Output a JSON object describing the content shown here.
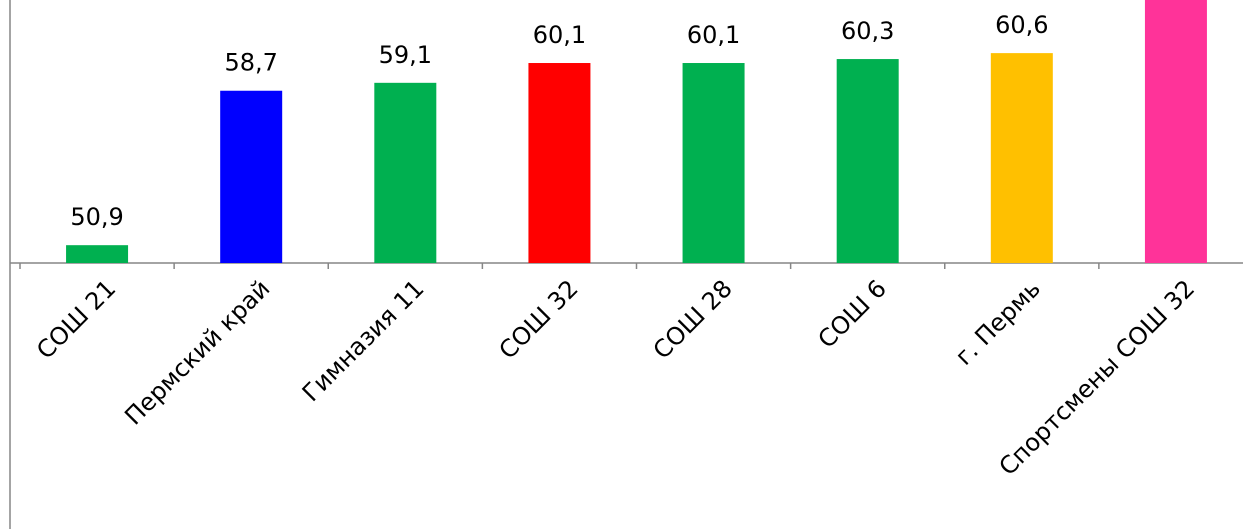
{
  "chart_data": {
    "type": "bar",
    "categories": [
      "СОШ 21",
      "Пермский край",
      "Гимназия 11",
      "СОШ 32",
      "СОШ 28",
      "СОШ 6",
      "г. Пермь",
      "Спортсмены СОШ 32"
    ],
    "values": [
      50.9,
      58.7,
      59.1,
      60.1,
      60.1,
      60.3,
      60.6,
      null
    ],
    "data_labels": [
      "50,9",
      "58,7",
      "59,1",
      "60,1",
      "60,1",
      "60,3",
      "60,6",
      ""
    ],
    "colors": [
      "#00b050",
      "#0000ff",
      "#00b050",
      "#ff0000",
      "#00b050",
      "#00b050",
      "#ffc000",
      "#ff3399"
    ],
    "ylim": [
      50,
      64
    ],
    "grid": false,
    "legend": "none",
    "notes": "The last bar extends beyond the top of the visible area; its value label is not visible."
  }
}
